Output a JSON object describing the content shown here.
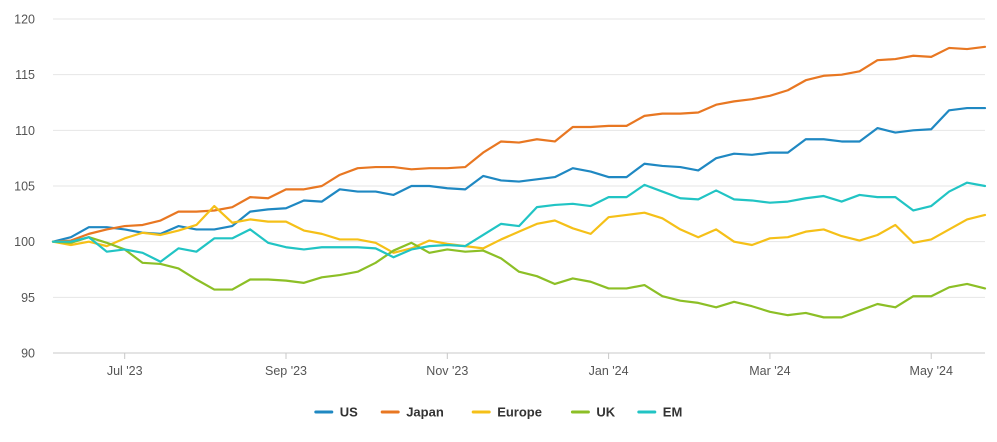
{
  "chart_data": {
    "type": "line",
    "title": "",
    "xlabel": "",
    "ylabel": "",
    "ylim": [
      90,
      120
    ],
    "y_ticks": [
      90,
      95,
      100,
      105,
      110,
      115,
      120
    ],
    "y_tick_labels": [
      "90",
      "95",
      "100",
      "105",
      "110",
      "115",
      "120"
    ],
    "x_ticks": [
      4,
      13,
      22,
      31,
      40,
      49
    ],
    "x_tick_labels": [
      "Jul '23",
      "Sep '23",
      "Nov '23",
      "Jan '24",
      "Mar '24",
      "May '24"
    ],
    "x_count": 53,
    "grid": "horizontal",
    "legend_position": "bottom-center",
    "series": [
      {
        "name": "US",
        "color": "#1f88c2",
        "values": [
          100.0,
          100.4,
          101.3,
          101.3,
          101.1,
          100.8,
          100.7,
          101.4,
          101.1,
          101.1,
          101.4,
          102.7,
          102.9,
          103.0,
          103.7,
          103.6,
          104.7,
          104.5,
          104.5,
          104.2,
          105.0,
          105.0,
          104.8,
          104.7,
          105.9,
          105.5,
          105.4,
          105.6,
          105.8,
          106.6,
          106.3,
          105.8,
          105.8,
          107.0,
          106.8,
          106.7,
          106.4,
          107.5,
          107.9,
          107.8,
          108.0,
          108.0,
          109.2,
          109.2,
          109.0,
          109.0,
          110.2,
          109.8,
          110.0,
          110.1,
          111.8,
          112.0,
          112.0
        ]
      },
      {
        "name": "Japan",
        "color": "#e87722",
        "values": [
          100.0,
          100.1,
          100.7,
          101.1,
          101.4,
          101.5,
          101.9,
          102.7,
          102.7,
          102.8,
          103.1,
          104.0,
          103.9,
          104.7,
          104.7,
          105.0,
          106.0,
          106.6,
          106.7,
          106.7,
          106.5,
          106.6,
          106.6,
          106.7,
          108.0,
          109.0,
          108.9,
          109.2,
          109.0,
          110.3,
          110.3,
          110.4,
          110.4,
          111.3,
          111.5,
          111.5,
          111.6,
          112.3,
          112.6,
          112.8,
          113.1,
          113.6,
          114.5,
          114.9,
          115.0,
          115.3,
          116.3,
          116.4,
          116.7,
          116.6,
          117.4,
          117.3,
          117.5
        ]
      },
      {
        "name": "Europe",
        "color": "#f5c018",
        "values": [
          100.0,
          99.7,
          100.0,
          99.6,
          100.3,
          100.8,
          100.6,
          101.0,
          101.5,
          103.2,
          101.7,
          102.0,
          101.8,
          101.8,
          101.0,
          100.7,
          100.2,
          100.2,
          99.9,
          99.0,
          99.4,
          100.1,
          99.8,
          99.6,
          99.4,
          100.2,
          100.9,
          101.6,
          101.9,
          101.2,
          100.7,
          102.2,
          102.4,
          102.6,
          102.1,
          101.1,
          100.4,
          101.1,
          100.0,
          99.7,
          100.3,
          100.4,
          100.9,
          101.1,
          100.5,
          100.1,
          100.6,
          101.5,
          99.9,
          100.2,
          101.1,
          102.0,
          102.4
        ]
      },
      {
        "name": "UK",
        "color": "#8cbf26",
        "values": [
          100.0,
          99.9,
          100.4,
          99.9,
          99.3,
          98.1,
          98.0,
          97.6,
          96.6,
          95.7,
          95.7,
          96.6,
          96.6,
          96.5,
          96.3,
          96.8,
          97.0,
          97.3,
          98.1,
          99.2,
          99.9,
          99.0,
          99.3,
          99.1,
          99.2,
          98.5,
          97.3,
          96.9,
          96.2,
          96.7,
          96.4,
          95.8,
          95.8,
          96.1,
          95.1,
          94.7,
          94.5,
          94.1,
          94.6,
          94.2,
          93.7,
          93.4,
          93.6,
          93.2,
          93.2,
          93.8,
          94.4,
          94.1,
          95.1,
          95.1,
          95.9,
          96.2,
          95.8
        ]
      },
      {
        "name": "EM",
        "color": "#21c4c4",
        "values": [
          100.0,
          100.0,
          100.4,
          99.1,
          99.3,
          99.0,
          98.2,
          99.4,
          99.1,
          100.3,
          100.3,
          101.1,
          99.9,
          99.5,
          99.3,
          99.5,
          99.5,
          99.5,
          99.4,
          98.6,
          99.3,
          99.6,
          99.7,
          99.6,
          100.6,
          101.6,
          101.4,
          103.1,
          103.3,
          103.4,
          103.2,
          104.0,
          104.0,
          105.1,
          104.5,
          103.9,
          103.8,
          104.6,
          103.8,
          103.7,
          103.5,
          103.6,
          103.9,
          104.1,
          103.6,
          104.2,
          104.0,
          104.0,
          102.8,
          103.2,
          104.5,
          105.3,
          105.0
        ]
      }
    ]
  }
}
